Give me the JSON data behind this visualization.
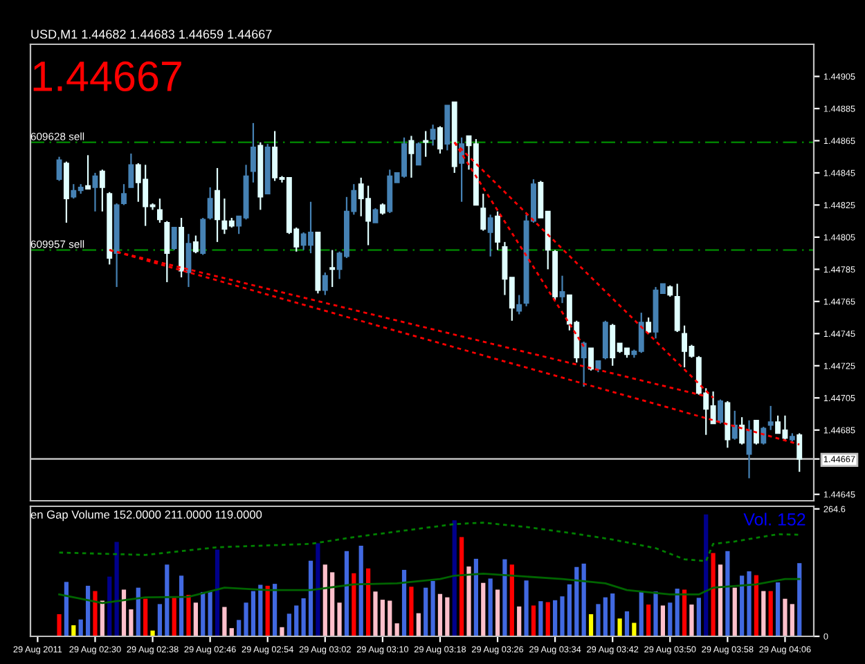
{
  "chart_data": [
    {
      "type": "candlestick",
      "title": "USD,M1 1.44682 1.44683 1.44659 1.44667",
      "x": [
        "2011-08-29T02:25",
        "2011-08-29T02:26",
        "2011-08-29T02:27",
        "2011-08-29T02:28",
        "2011-08-29T02:29",
        "2011-08-29T02:30",
        "2011-08-29T02:31",
        "2011-08-29T02:32",
        "2011-08-29T02:33",
        "2011-08-29T02:34",
        "2011-08-29T02:35",
        "2011-08-29T02:36",
        "2011-08-29T02:37",
        "2011-08-29T02:38",
        "2011-08-29T02:39",
        "2011-08-29T02:40",
        "2011-08-29T02:41",
        "2011-08-29T02:42",
        "2011-08-29T02:43",
        "2011-08-29T02:44",
        "2011-08-29T02:45",
        "2011-08-29T02:46",
        "2011-08-29T02:47",
        "2011-08-29T02:48",
        "2011-08-29T02:49",
        "2011-08-29T02:50",
        "2011-08-29T02:51",
        "2011-08-29T02:52",
        "2011-08-29T02:53",
        "2011-08-29T02:54",
        "2011-08-29T02:55",
        "2011-08-29T02:56",
        "2011-08-29T02:57",
        "2011-08-29T02:58",
        "2011-08-29T02:59",
        "2011-08-29T03:00",
        "2011-08-29T03:01",
        "2011-08-29T03:02",
        "2011-08-29T03:03",
        "2011-08-29T03:04",
        "2011-08-29T03:05",
        "2011-08-29T03:06",
        "2011-08-29T03:07",
        "2011-08-29T03:08",
        "2011-08-29T03:09",
        "2011-08-29T03:10",
        "2011-08-29T03:11",
        "2011-08-29T03:12",
        "2011-08-29T03:13",
        "2011-08-29T03:14",
        "2011-08-29T03:15",
        "2011-08-29T03:16",
        "2011-08-29T03:17",
        "2011-08-29T03:18",
        "2011-08-29T03:19",
        "2011-08-29T03:20",
        "2011-08-29T03:21",
        "2011-08-29T03:22",
        "2011-08-29T03:23",
        "2011-08-29T03:24",
        "2011-08-29T03:25",
        "2011-08-29T03:26",
        "2011-08-29T03:27",
        "2011-08-29T03:28",
        "2011-08-29T03:29",
        "2011-08-29T03:30",
        "2011-08-29T03:31",
        "2011-08-29T03:32",
        "2011-08-29T03:33",
        "2011-08-29T03:34",
        "2011-08-29T03:35",
        "2011-08-29T03:36",
        "2011-08-29T03:37",
        "2011-08-29T03:38",
        "2011-08-29T03:39",
        "2011-08-29T03:40",
        "2011-08-29T03:41",
        "2011-08-29T03:42",
        "2011-08-29T03:43",
        "2011-08-29T03:44",
        "2011-08-29T03:45",
        "2011-08-29T03:46",
        "2011-08-29T03:47",
        "2011-08-29T03:48",
        "2011-08-29T03:49",
        "2011-08-29T03:50",
        "2011-08-29T03:51",
        "2011-08-29T03:52",
        "2011-08-29T03:53",
        "2011-08-29T03:54",
        "2011-08-29T03:55",
        "2011-08-29T03:56",
        "2011-08-29T03:57",
        "2011-08-29T03:58",
        "2011-08-29T03:59",
        "2011-08-29T04:00",
        "2011-08-29T04:01",
        "2011-08-29T04:02",
        "2011-08-29T04:03",
        "2011-08-29T04:04",
        "2011-08-29T04:05",
        "2011-08-29T04:06",
        "2011-08-29T04:07",
        "2011-08-29T04:08"
      ],
      "ohlc": [
        [
          1.44841,
          1.44855,
          1.4484,
          1.44853
        ],
        [
          1.44851,
          1.44852,
          1.44814,
          1.44829
        ],
        [
          1.4483,
          1.44838,
          1.44829,
          1.44834
        ],
        [
          1.44834,
          1.44838,
          1.44832,
          1.44836
        ],
        [
          1.44837,
          1.44856,
          1.44835,
          1.44835
        ],
        [
          1.44836,
          1.44845,
          1.44821,
          1.44843
        ],
        [
          1.44846,
          1.44847,
          1.44821,
          1.44836
        ],
        [
          1.44832,
          1.44833,
          1.44788,
          1.44792
        ],
        [
          1.44795,
          1.44826,
          1.44774,
          1.44825
        ],
        [
          1.44826,
          1.44838,
          1.44825,
          1.44832
        ],
        [
          1.44836,
          1.44857,
          1.44836,
          1.4485
        ],
        [
          1.4485,
          1.44851,
          1.44827,
          1.44839
        ],
        [
          1.44841,
          1.4485,
          1.44812,
          1.44824
        ],
        [
          1.44825,
          1.44826,
          1.44822,
          1.44824
        ],
        [
          1.44822,
          1.44829,
          1.44814,
          1.44816
        ],
        [
          1.44814,
          1.44815,
          1.44777,
          1.44795
        ],
        [
          1.44798,
          1.44811,
          1.44797,
          1.44811
        ],
        [
          1.44811,
          1.44817,
          1.4478,
          1.44784
        ],
        [
          1.44783,
          1.44807,
          1.44774,
          1.44801
        ],
        [
          1.44802,
          1.44806,
          1.44795,
          1.44796
        ],
        [
          1.44795,
          1.44817,
          1.44794,
          1.44816
        ],
        [
          1.44817,
          1.44836,
          1.44816,
          1.44829
        ],
        [
          1.44834,
          1.44848,
          1.44802,
          1.44816
        ],
        [
          1.44815,
          1.44829,
          1.44807,
          1.4481
        ],
        [
          1.44815,
          1.44817,
          1.44811,
          1.44812
        ],
        [
          1.44812,
          1.44818,
          1.44807,
          1.44818
        ],
        [
          1.44817,
          1.4485,
          1.44816,
          1.44843
        ],
        [
          1.44846,
          1.44876,
          1.44839,
          1.44861
        ],
        [
          1.44862,
          1.44864,
          1.44822,
          1.4483
        ],
        [
          1.44832,
          1.44863,
          1.44832,
          1.44861
        ],
        [
          1.44861,
          1.44871,
          1.4484,
          1.44842
        ],
        [
          1.44842,
          1.44843,
          1.44839,
          1.44841
        ],
        [
          1.44842,
          1.44842,
          1.44807,
          1.44808
        ],
        [
          1.4481,
          1.44811,
          1.44796,
          1.44799
        ],
        [
          1.448,
          1.44808,
          1.44797,
          1.44807
        ],
        [
          1.448,
          1.44827,
          1.44795,
          1.44808
        ],
        [
          1.44808,
          1.44808,
          1.4477,
          1.44772
        ],
        [
          1.44772,
          1.44783,
          1.44769,
          1.44781
        ],
        [
          1.44786,
          1.44797,
          1.44774,
          1.44785
        ],
        [
          1.44785,
          1.44796,
          1.44779,
          1.44795
        ],
        [
          1.44793,
          1.4483,
          1.44792,
          1.44821
        ],
        [
          1.44821,
          1.44838,
          1.44819,
          1.44834
        ],
        [
          1.44838,
          1.44842,
          1.44818,
          1.44829
        ],
        [
          1.44829,
          1.44837,
          1.448,
          1.44815
        ],
        [
          1.44814,
          1.44823,
          1.44814,
          1.44822
        ],
        [
          1.44825,
          1.44826,
          1.44819,
          1.4482
        ],
        [
          1.44821,
          1.44847,
          1.4482,
          1.44843
        ],
        [
          1.44839,
          1.44845,
          1.44839,
          1.44845
        ],
        [
          1.44843,
          1.44867,
          1.44842,
          1.44863
        ],
        [
          1.44865,
          1.44868,
          1.44842,
          1.44857
        ],
        [
          1.4485,
          1.44864,
          1.4485,
          1.44863
        ],
        [
          1.44865,
          1.44871,
          1.44855,
          1.44864
        ],
        [
          1.44866,
          1.44875,
          1.44862,
          1.44872
        ],
        [
          1.44873,
          1.44874,
          1.44857,
          1.4486
        ],
        [
          1.44863,
          1.44887,
          1.44859,
          1.44887
        ],
        [
          1.44889,
          1.44889,
          1.44845,
          1.44849
        ],
        [
          1.44851,
          1.44867,
          1.44827,
          1.44863
        ],
        [
          1.44868,
          1.44868,
          1.44847,
          1.44862
        ],
        [
          1.44863,
          1.44866,
          1.44825,
          1.44825
        ],
        [
          1.44823,
          1.44832,
          1.44809,
          1.4481
        ],
        [
          1.44808,
          1.44819,
          1.44793,
          1.44817
        ],
        [
          1.44818,
          1.44821,
          1.44797,
          1.44802
        ],
        [
          1.44799,
          1.44802,
          1.44769,
          1.44779
        ],
        [
          1.4478,
          1.4478,
          1.44753,
          1.44761
        ],
        [
          1.44759,
          1.44769,
          1.44757,
          1.44763
        ],
        [
          1.44764,
          1.44819,
          1.44762,
          1.44815
        ],
        [
          1.44815,
          1.44841,
          1.44814,
          1.44838
        ],
        [
          1.44839,
          1.4484,
          1.44817,
          1.44817
        ],
        [
          1.44821,
          1.44821,
          1.44785,
          1.44797
        ],
        [
          1.44796,
          1.44797,
          1.44766,
          1.44768
        ],
        [
          1.44768,
          1.44781,
          1.44764,
          1.44771
        ],
        [
          1.44769,
          1.44769,
          1.44747,
          1.44751
        ],
        [
          1.44752,
          1.44753,
          1.44727,
          1.4473
        ],
        [
          1.4473,
          1.4474,
          1.44712,
          1.44739
        ],
        [
          1.44736,
          1.44736,
          1.44722,
          1.44723
        ],
        [
          1.44723,
          1.44728,
          1.44721,
          1.44728
        ],
        [
          1.4473,
          1.44753,
          1.44729,
          1.44752
        ],
        [
          1.4475,
          1.44751,
          1.44725,
          1.4473
        ],
        [
          1.44739,
          1.44739,
          1.44733,
          1.44734
        ],
        [
          1.44736,
          1.44736,
          1.4473,
          1.44732
        ],
        [
          1.44732,
          1.44735,
          1.4473,
          1.44734
        ],
        [
          1.44734,
          1.44758,
          1.44733,
          1.44752
        ],
        [
          1.44752,
          1.44755,
          1.44745,
          1.44746
        ],
        [
          1.44746,
          1.44774,
          1.44742,
          1.44772
        ],
        [
          1.4477,
          1.44776,
          1.4477,
          1.44776
        ],
        [
          1.44774,
          1.44775,
          1.44768,
          1.44769
        ],
        [
          1.44768,
          1.44776,
          1.44746,
          1.44747
        ],
        [
          1.44745,
          1.4475,
          1.44724,
          1.44734
        ],
        [
          1.44737,
          1.44738,
          1.4473,
          1.44731
        ],
        [
          1.4473,
          1.44731,
          1.44707,
          1.44708
        ],
        [
          1.44708,
          1.44711,
          1.44682,
          1.44698
        ],
        [
          1.447,
          1.44709,
          1.44689,
          1.44689
        ],
        [
          1.4469,
          1.44704,
          1.44689,
          1.44703
        ],
        [
          1.44702,
          1.44703,
          1.44674,
          1.44679
        ],
        [
          1.4468,
          1.44697,
          1.44679,
          1.44688
        ],
        [
          1.44688,
          1.44693,
          1.44676,
          1.44677
        ],
        [
          1.4467,
          1.44691,
          1.44655,
          1.44685
        ],
        [
          1.44691,
          1.44691,
          1.44676,
          1.44677
        ],
        [
          1.44677,
          1.44687,
          1.44676,
          1.44686
        ],
        [
          1.44688,
          1.447,
          1.44685,
          1.4469
        ],
        [
          1.4469,
          1.44694,
          1.44683,
          1.44683
        ],
        [
          1.44685,
          1.44694,
          1.44679,
          1.4468
        ],
        [
          1.44679,
          1.44683,
          1.44678,
          1.44681
        ],
        [
          1.44682,
          1.44683,
          1.44659,
          1.44667
        ]
      ],
      "colors": [
        "#4682b4",
        "#e0ffff",
        "#4682b4",
        "#4682b4",
        "#e0ffff",
        "#4682b4",
        "#e0ffff",
        "#e0ffff",
        "#4682b4",
        "#4682b4",
        "#4682b4",
        "#e0ffff",
        "#e0ffff",
        "#e0ffff",
        "#e0ffff",
        "#e0ffff",
        "#4682b4",
        "#e0ffff",
        "#4682b4",
        "#e0ffff",
        "#4682b4",
        "#4682b4",
        "#e0ffff",
        "#e0ffff",
        "#e0ffff",
        "#4682b4",
        "#4682b4",
        "#4682b4",
        "#e0ffff",
        "#4682b4",
        "#e0ffff",
        "#e0ffff",
        "#e0ffff",
        "#e0ffff",
        "#4682b4",
        "#4682b4",
        "#e0ffff",
        "#4682b4",
        "#e0ffff",
        "#4682b4",
        "#4682b4",
        "#4682b4",
        "#e0ffff",
        "#e0ffff",
        "#4682b4",
        "#e0ffff",
        "#4682b4",
        "#4682b4",
        "#4682b4",
        "#e0ffff",
        "#4682b4",
        "#e0ffff",
        "#4682b4",
        "#e0ffff",
        "#4682b4",
        "#e0ffff",
        "#4682b4",
        "#e0ffff",
        "#e0ffff",
        "#e0ffff",
        "#4682b4",
        "#e0ffff",
        "#e0ffff",
        "#e0ffff",
        "#4682b4",
        "#4682b4",
        "#4682b4",
        "#e0ffff",
        "#e0ffff",
        "#e0ffff",
        "#4682b4",
        "#e0ffff",
        "#e0ffff",
        "#4682b4",
        "#e0ffff",
        "#4682b4",
        "#4682b4",
        "#e0ffff",
        "#e0ffff",
        "#e0ffff",
        "#4682b4",
        "#4682b4",
        "#e0ffff",
        "#4682b4",
        "#4682b4",
        "#e0ffff",
        "#e0ffff",
        "#e0ffff",
        "#e0ffff",
        "#e0ffff",
        "#e0ffff",
        "#e0ffff",
        "#4682b4",
        "#e0ffff",
        "#4682b4",
        "#e0ffff",
        "#4682b4",
        "#e0ffff",
        "#4682b4",
        "#4682b4",
        "#e0ffff",
        "#e0ffff",
        "#4682b4",
        "#e0ffff"
      ],
      "series": [
        {
          "type": "line",
          "x": [
            "2011-08-29T02:32",
            "2011-08-29T03:55"
          ],
          "values": [
            1.44797,
            1.44706
          ],
          "color": "#ff0000",
          "line_style": "dotted"
        },
        {
          "type": "line",
          "x": [
            "2011-08-29T02:32",
            "2011-08-29T04:08"
          ],
          "values": [
            1.44797,
            1.44676
          ],
          "color": "#ff0000",
          "line_style": "dotted"
        },
        {
          "type": "line",
          "x": [
            "2011-08-29T03:20",
            "2011-08-29T03:38"
          ],
          "values": [
            1.44864,
            1.44737
          ],
          "color": "#ff0000",
          "line_style": "dotted"
        },
        {
          "type": "line",
          "x": [
            "2011-08-29T03:20",
            "2011-08-29T03:56"
          ],
          "values": [
            1.44864,
            1.44705
          ],
          "color": "#ff0000",
          "line_style": "dotted"
        }
      ],
      "ref_lines": [
        {
          "axis": "y",
          "value": 1.44864,
          "label": "609628 sell",
          "color": "#008000",
          "line_style": "dashed"
        },
        {
          "axis": "y",
          "value": 1.44797,
          "label": "609957 sell",
          "color": "#008000",
          "line_style": "dashed"
        },
        {
          "axis": "y",
          "value": 1.44667,
          "color": "#c0c0c0",
          "line_style": "solid"
        }
      ],
      "annotations": [
        "1.44667"
      ],
      "xlim": [
        "2011-08-29T02:21",
        "2011-08-29T04:10"
      ],
      "ylim": [
        1.44641,
        1.44925
      ],
      "yticks": [
        1.44905,
        1.44885,
        1.44865,
        1.44845,
        1.44825,
        1.44805,
        1.44785,
        1.44765,
        1.44745,
        1.44725,
        1.44705,
        1.44685,
        1.44667,
        1.44645
      ],
      "tick_labels": "y",
      "grid": false
    },
    {
      "type": "bar",
      "title": "en Gap Volume 152.0000 211.0000 119.0000",
      "x": [
        "2011-08-29T02:25",
        "2011-08-29T02:26",
        "2011-08-29T02:27",
        "2011-08-29T02:28",
        "2011-08-29T02:29",
        "2011-08-29T02:30",
        "2011-08-29T02:31",
        "2011-08-29T02:32",
        "2011-08-29T02:33",
        "2011-08-29T02:34",
        "2011-08-29T02:35",
        "2011-08-29T02:36",
        "2011-08-29T02:37",
        "2011-08-29T02:38",
        "2011-08-29T02:39",
        "2011-08-29T02:40",
        "2011-08-29T02:41",
        "2011-08-29T02:42",
        "2011-08-29T02:43",
        "2011-08-29T02:44",
        "2011-08-29T02:45",
        "2011-08-29T02:46",
        "2011-08-29T02:47",
        "2011-08-29T02:48",
        "2011-08-29T02:49",
        "2011-08-29T02:50",
        "2011-08-29T02:51",
        "2011-08-29T02:52",
        "2011-08-29T02:53",
        "2011-08-29T02:54",
        "2011-08-29T02:55",
        "2011-08-29T02:56",
        "2011-08-29T02:57",
        "2011-08-29T02:58",
        "2011-08-29T02:59",
        "2011-08-29T03:00",
        "2011-08-29T03:01",
        "2011-08-29T03:02",
        "2011-08-29T03:03",
        "2011-08-29T03:04",
        "2011-08-29T03:05",
        "2011-08-29T03:06",
        "2011-08-29T03:07",
        "2011-08-29T03:08",
        "2011-08-29T03:09",
        "2011-08-29T03:10",
        "2011-08-29T03:11",
        "2011-08-29T03:12",
        "2011-08-29T03:13",
        "2011-08-29T03:14",
        "2011-08-29T03:15",
        "2011-08-29T03:16",
        "2011-08-29T03:17",
        "2011-08-29T03:18",
        "2011-08-29T03:19",
        "2011-08-29T03:20",
        "2011-08-29T03:21",
        "2011-08-29T03:22",
        "2011-08-29T03:23",
        "2011-08-29T03:24",
        "2011-08-29T03:25",
        "2011-08-29T03:26",
        "2011-08-29T03:27",
        "2011-08-29T03:28",
        "2011-08-29T03:29",
        "2011-08-29T03:30",
        "2011-08-29T03:31",
        "2011-08-29T03:32",
        "2011-08-29T03:33",
        "2011-08-29T03:34",
        "2011-08-29T03:35",
        "2011-08-29T03:36",
        "2011-08-29T03:37",
        "2011-08-29T03:38",
        "2011-08-29T03:39",
        "2011-08-29T03:40",
        "2011-08-29T03:41",
        "2011-08-29T03:42",
        "2011-08-29T03:43",
        "2011-08-29T03:44",
        "2011-08-29T03:45",
        "2011-08-29T03:46",
        "2011-08-29T03:47",
        "2011-08-29T03:48",
        "2011-08-29T03:49",
        "2011-08-29T03:50",
        "2011-08-29T03:51",
        "2011-08-29T03:52",
        "2011-08-29T03:53",
        "2011-08-29T03:54",
        "2011-08-29T03:55",
        "2011-08-29T03:56",
        "2011-08-29T03:57",
        "2011-08-29T03:58",
        "2011-08-29T03:59",
        "2011-08-29T04:00",
        "2011-08-29T04:01",
        "2011-08-29T04:02",
        "2011-08-29T04:03",
        "2011-08-29T04:04",
        "2011-08-29T04:05",
        "2011-08-29T04:06",
        "2011-08-29T04:07",
        "2011-08-29T04:08"
      ],
      "series": [
        {
          "type": "bar",
          "values": [
            46,
            113,
            23,
            35,
            105,
            94,
            74,
            124,
            196,
            97,
            56,
            101,
            78,
            12,
            67,
            149,
            80,
            126,
            86,
            70,
            92,
            93,
            180,
            61,
            17,
            34,
            70,
            94,
            107,
            105,
            109,
            19,
            47,
            64,
            79,
            157,
            193,
            149,
            133,
            70,
            177,
            131,
            188,
            141,
            93,
            76,
            74,
            27,
            138,
            103,
            48,
            101,
            115,
            88,
            81,
            241,
            206,
            145,
            161,
            111,
            120,
            97,
            160,
            149,
            62,
            116,
            64,
            73,
            71,
            75,
            83,
            108,
            144,
            151,
            46,
            67,
            81,
            89,
            37,
            52,
            28,
            92,
            66,
            93,
            64,
            70,
            99,
            97,
            66,
            80,
            253,
            173,
            149,
            177,
            101,
            126,
            135,
            127,
            94,
            94,
            112,
            78,
            67,
            152
          ],
          "colors": [
            "#ff0000",
            "#4169e1",
            "#ffff00",
            "#4169e1",
            "#4169e1",
            "#ff0000",
            "#ffc0cb",
            "#00008b",
            "#00008b",
            "#ffc0cb",
            "#ffc0cb",
            "#4169e1",
            "#ff0000",
            "#ffff00",
            "#4169e1",
            "#4169e1",
            "#ff0000",
            "#4169e1",
            "#ff0000",
            "#ffc0cb",
            "#4169e1",
            "#4169e1",
            "#00008b",
            "#ffc0cb",
            "#ffc0cb",
            "#4169e1",
            "#4169e1",
            "#4169e1",
            "#4169e1",
            "#ff0000",
            "#4169e1",
            "#ffc0cb",
            "#4169e1",
            "#4169e1",
            "#4169e1",
            "#4169e1",
            "#00008b",
            "#ffc0cb",
            "#ffc0cb",
            "#ffc0cb",
            "#4169e1",
            "#ff0000",
            "#4169e1",
            "#ff0000",
            "#ffc0cb",
            "#ffc0cb",
            "#ffc0cb",
            "#ffc0cb",
            "#4169e1",
            "#ff0000",
            "#ffc0cb",
            "#4169e1",
            "#4169e1",
            "#ffc0cb",
            "#ffc0cb",
            "#00008b",
            "#ff0000",
            "#ffc0cb",
            "#4169e1",
            "#ffc0cb",
            "#4169e1",
            "#ffc0cb",
            "#4169e1",
            "#ff0000",
            "#ffc0cb",
            "#4169e1",
            "#ff0000",
            "#4169e1",
            "#ff0000",
            "#4169e1",
            "#4169e1",
            "#4169e1",
            "#4169e1",
            "#4169e1",
            "#ffff00",
            "#4169e1",
            "#4169e1",
            "#4169e1",
            "#ffff00",
            "#4169e1",
            "#ffff00",
            "#4169e1",
            "#ff0000",
            "#4169e1",
            "#ffc0cb",
            "#4169e1",
            "#4169e1",
            "#ff0000",
            "#ffc0cb",
            "#4169e1",
            "#00008b",
            "#ff0000",
            "#ffc0cb",
            "#4169e1",
            "#ffc0cb",
            "#4169e1",
            "#4169e1",
            "#ff0000",
            "#ffc0cb",
            "#ff0000",
            "#4169e1",
            "#ffc0cb",
            "#ffc0cb",
            "#4169e1"
          ]
        },
        {
          "type": "line",
          "x": [
            "2011-08-29T02:25",
            "2011-08-29T02:37",
            "2011-08-29T02:47",
            "2011-08-29T03:00",
            "2011-08-29T03:06",
            "2011-08-29T03:20",
            "2011-08-29T03:24",
            "2011-08-29T03:30",
            "2011-08-29T03:36",
            "2011-08-29T03:42",
            "2011-08-29T03:48",
            "2011-08-29T03:52",
            "2011-08-29T03:55",
            "2011-08-29T03:56",
            "2011-08-29T03:59",
            "2011-08-29T04:05",
            "2011-08-29T04:08"
          ],
          "values": [
            174,
            169,
            185,
            192,
            206,
            233,
            236,
            227,
            215,
            201,
            183,
            160,
            156,
            192,
            197,
            212,
            211
          ],
          "color": "#008000",
          "line_style": "dotted"
        },
        {
          "type": "line",
          "x": [
            "2011-08-29T02:25",
            "2011-08-29T02:31",
            "2011-08-29T02:37",
            "2011-08-29T02:43",
            "2011-08-29T02:48",
            "2011-08-29T02:54",
            "2011-08-29T03:00",
            "2011-08-29T03:06",
            "2011-08-29T03:12",
            "2011-08-29T03:18",
            "2011-08-29T03:20",
            "2011-08-29T03:24",
            "2011-08-29T03:30",
            "2011-08-29T03:35",
            "2011-08-29T03:41",
            "2011-08-29T03:44",
            "2011-08-29T03:50",
            "2011-08-29T03:54",
            "2011-08-29T03:56",
            "2011-08-29T04:02",
            "2011-08-29T04:06",
            "2011-08-29T04:08"
          ],
          "values": [
            87,
            69,
            81,
            82,
            101,
            96,
            96,
            108,
            110,
            119,
            126,
            130,
            124,
            119,
            110,
            96,
            87,
            87,
            101,
            108,
            119,
            119
          ],
          "color": "#006400",
          "line_style": "solid"
        }
      ],
      "annotations": [
        "Vol. 152"
      ],
      "xlim": [
        "2011-08-29T02:21",
        "2011-08-29T04:10"
      ],
      "xticks": [
        {
          "value": "2011-08-29T02:22",
          "label": "29 Aug 2011"
        },
        {
          "value": "2011-08-29T02:30",
          "label": "29 Aug 02:30"
        },
        {
          "value": "2011-08-29T02:38",
          "label": "29 Aug 02:38"
        },
        {
          "value": "2011-08-29T02:46",
          "label": "29 Aug 02:46"
        },
        {
          "value": "2011-08-29T02:54",
          "label": "29 Aug 02:54"
        },
        {
          "value": "2011-08-29T03:02",
          "label": "29 Aug 03:02"
        },
        {
          "value": "2011-08-29T03:10",
          "label": "29 Aug 03:10"
        },
        {
          "value": "2011-08-29T03:18",
          "label": "29 Aug 03:18"
        },
        {
          "value": "2011-08-29T03:26",
          "label": "29 Aug 03:26"
        },
        {
          "value": "2011-08-29T03:34",
          "label": "29 Aug 03:34"
        },
        {
          "value": "2011-08-29T03:42",
          "label": "29 Aug 03:42"
        },
        {
          "value": "2011-08-29T03:50",
          "label": "29 Aug 03:50"
        },
        {
          "value": "2011-08-29T03:58",
          "label": "29 Aug 03:58"
        },
        {
          "value": "2011-08-29T04:06",
          "label": "29 Aug 04:06"
        }
      ],
      "ylim": [
        0,
        270
      ],
      "yticks": [
        0,
        264.6
      ],
      "grid": false
    }
  ]
}
